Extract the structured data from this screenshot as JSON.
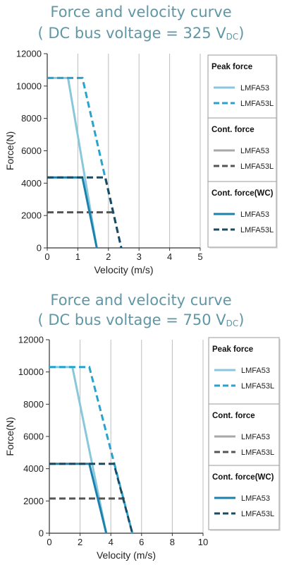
{
  "chart_data": [
    {
      "type": "line",
      "title": "Force and velocity curve",
      "subtitle_prefix": "( DC bus voltage = 325 V",
      "subtitle_sub": "DC",
      "subtitle_suffix": ")",
      "xlabel": "Velocity (m/s)",
      "ylabel": "Force(N)",
      "xlim": [
        0,
        5
      ],
      "ylim": [
        0,
        12000
      ],
      "xticks": [
        "0",
        "1",
        "2",
        "3",
        "4",
        "5"
      ],
      "yticks": [
        "0",
        "2000",
        "4000",
        "6000",
        "8000",
        "10000",
        "12000"
      ],
      "grid": "vertical",
      "legend_groups": [
        {
          "title": "Peak force",
          "items": [
            "LMFA53",
            "LMFA53L"
          ]
        },
        {
          "title": "Cont. force",
          "items": [
            "LMFA53",
            "LMFA53L"
          ]
        },
        {
          "title": "Cont. force(WC)",
          "items": [
            "LMFA53",
            "LMFA53L"
          ]
        }
      ],
      "series": [
        {
          "name": "LMFA53",
          "group": "Peak force",
          "color": "#88c7dc",
          "style": "solid",
          "points": [
            [
              0,
              10500
            ],
            [
              0.68,
              10500
            ],
            [
              1.62,
              0
            ]
          ]
        },
        {
          "name": "LMFA53L",
          "group": "Peak force",
          "color": "#2aa3cc",
          "style": "dashed",
          "points": [
            [
              0,
              10500
            ],
            [
              1.15,
              10500
            ],
            [
              2.42,
              0
            ]
          ]
        },
        {
          "name": "LMFA53",
          "group": "Cont. force",
          "color": "#a8a8a8",
          "style": "solid",
          "points": []
        },
        {
          "name": "LMFA53L",
          "group": "Cont. force",
          "color": "#555555",
          "style": "dashed",
          "points": [
            [
              0,
              2200
            ],
            [
              2.15,
              2200
            ]
          ]
        },
        {
          "name": "LMFA53",
          "group": "Cont. force(WC)",
          "color": "#1c82ad",
          "style": "solid",
          "points": [
            [
              0,
              4350
            ],
            [
              1.15,
              4350
            ],
            [
              1.62,
              0
            ]
          ]
        },
        {
          "name": "LMFA53L",
          "group": "Cont. force(WC)",
          "color": "#1b4a63",
          "style": "dashed",
          "points": [
            [
              0,
              4350
            ],
            [
              1.9,
              4350
            ],
            [
              2.42,
              0
            ]
          ]
        }
      ]
    },
    {
      "type": "line",
      "title": "Force and velocity curve",
      "subtitle_prefix": "( DC bus voltage = 750 V",
      "subtitle_sub": "DC",
      "subtitle_suffix": ")",
      "xlabel": "Velocity (m/s)",
      "ylabel": "Force(N)",
      "xlim": [
        0,
        10
      ],
      "ylim": [
        0,
        12000
      ],
      "xticks": [
        "0",
        "2",
        "4",
        "6",
        "8",
        "10"
      ],
      "yticks": [
        "0",
        "2000",
        "4000",
        "6000",
        "8000",
        "10000",
        "12000"
      ],
      "grid": "vertical",
      "legend_groups": [
        {
          "title": "Peak force",
          "items": [
            "LMFA53",
            "LMFA53L"
          ]
        },
        {
          "title": "Cont. force",
          "items": [
            "LMFA53",
            "LMFA53L"
          ]
        },
        {
          "title": "Cont. force(WC)",
          "items": [
            "LMFA53",
            "LMFA53L"
          ]
        }
      ],
      "series": [
        {
          "name": "LMFA53",
          "group": "Peak force",
          "color": "#88c7dc",
          "style": "solid",
          "points": [
            [
              0,
              10300
            ],
            [
              1.5,
              10300
            ],
            [
              3.7,
              0
            ]
          ]
        },
        {
          "name": "LMFA53L",
          "group": "Peak force",
          "color": "#2aa3cc",
          "style": "dashed",
          "points": [
            [
              0,
              10300
            ],
            [
              2.6,
              10300
            ],
            [
              5.4,
              0
            ]
          ]
        },
        {
          "name": "LMFA53",
          "group": "Cont. force",
          "color": "#a8a8a8",
          "style": "solid",
          "points": []
        },
        {
          "name": "LMFA53L",
          "group": "Cont. force",
          "color": "#555555",
          "style": "dashed",
          "points": [
            [
              0,
              2150
            ],
            [
              4.9,
              2150
            ]
          ]
        },
        {
          "name": "LMFA53",
          "group": "Cont. force(WC)",
          "color": "#1c82ad",
          "style": "solid",
          "points": [
            [
              0,
              4300
            ],
            [
              2.6,
              4300
            ],
            [
              3.7,
              0
            ]
          ]
        },
        {
          "name": "LMFA53L",
          "group": "Cont. force(WC)",
          "color": "#1b4a63",
          "style": "dashed",
          "points": [
            [
              0,
              4300
            ],
            [
              4.2,
              4300
            ],
            [
              5.4,
              0
            ]
          ]
        }
      ]
    }
  ]
}
